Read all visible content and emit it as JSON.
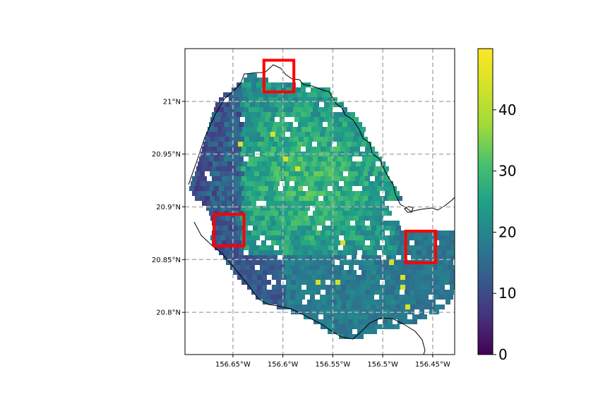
{
  "map": {
    "lon_range": [
      -156.698,
      -156.428
    ],
    "lat_range": [
      20.76,
      21.05
    ],
    "x_ticks": [
      {
        "value": -156.65,
        "label": "156.65°W"
      },
      {
        "value": -156.6,
        "label": "156.6°W"
      },
      {
        "value": -156.55,
        "label": "156.55°W"
      },
      {
        "value": -156.5,
        "label": "156.5°W"
      },
      {
        "value": -156.45,
        "label": "156.45°W"
      }
    ],
    "y_ticks": [
      {
        "value": 21.0,
        "label": "21°N"
      },
      {
        "value": 20.95,
        "label": "20.95°N"
      },
      {
        "value": 20.9,
        "label": "20.9°N"
      },
      {
        "value": 20.85,
        "label": "20.85°N"
      },
      {
        "value": 20.8,
        "label": "20.8°N"
      }
    ],
    "gridlines": true,
    "colormap": "viridis",
    "highlight_color": "#ff0000",
    "highlight_boxes": [
      {
        "lon": [
          -156.619,
          -156.589
        ],
        "lat": [
          21.009,
          21.039
        ]
      },
      {
        "lon": [
          -156.669,
          -156.639
        ],
        "lat": [
          20.863,
          20.893
        ]
      },
      {
        "lon": [
          -156.477,
          -156.447
        ],
        "lat": [
          20.847,
          20.877
        ]
      }
    ]
  },
  "colorbar": {
    "min": 0,
    "max": 50,
    "ticks": [
      {
        "value": 0,
        "label": "0"
      },
      {
        "value": 10,
        "label": "10"
      },
      {
        "value": 20,
        "label": "20"
      },
      {
        "value": 30,
        "label": "30"
      },
      {
        "value": 40,
        "label": "40"
      }
    ]
  }
}
